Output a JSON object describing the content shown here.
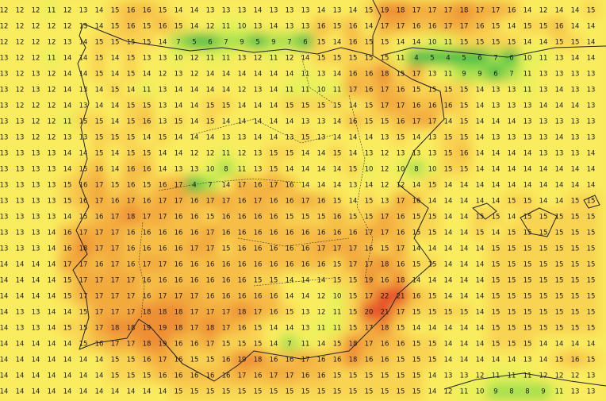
{
  "grid": {
    "rows": [
      [
        12,
        12,
        12,
        11,
        12,
        13,
        14,
        15,
        16,
        16,
        15,
        14,
        14,
        13,
        13,
        13,
        14,
        13,
        13,
        13,
        14,
        13,
        14,
        15,
        19,
        18,
        17,
        17,
        17,
        18,
        17,
        17,
        16,
        14,
        12,
        14,
        14,
        15
      ],
      [
        12,
        12,
        12,
        12,
        12,
        13,
        14,
        15,
        16,
        15,
        16,
        15,
        14,
        12,
        11,
        10,
        13,
        14,
        13,
        13,
        16,
        15,
        16,
        14,
        17,
        17,
        16,
        16,
        17,
        17,
        16,
        15,
        14,
        15,
        15,
        16,
        14,
        14
      ],
      [
        12,
        12,
        12,
        12,
        13,
        14,
        15,
        15,
        15,
        15,
        14,
        7,
        5,
        6,
        7,
        9,
        5,
        9,
        7,
        6,
        15,
        14,
        16,
        15,
        15,
        14,
        14,
        10,
        11,
        15,
        15,
        15,
        15,
        14,
        14,
        15,
        15,
        14
      ],
      [
        13,
        12,
        12,
        11,
        14,
        14,
        15,
        14,
        15,
        13,
        13,
        10,
        12,
        11,
        11,
        13,
        12,
        11,
        12,
        14,
        15,
        15,
        15,
        15,
        15,
        11,
        4,
        5,
        4,
        5,
        6,
        7,
        6,
        10,
        11,
        13,
        14,
        14
      ],
      [
        13,
        12,
        13,
        12,
        14,
        14,
        15,
        14,
        15,
        14,
        12,
        13,
        12,
        14,
        14,
        14,
        14,
        14,
        14,
        11,
        13,
        14,
        16,
        16,
        18,
        15,
        17,
        13,
        11,
        9,
        9,
        6,
        7,
        11,
        13,
        13,
        13,
        13
      ],
      [
        13,
        12,
        13,
        12,
        14,
        13,
        14,
        15,
        14,
        11,
        13,
        14,
        14,
        14,
        14,
        12,
        13,
        14,
        11,
        11,
        10,
        11,
        17,
        16,
        17,
        16,
        15,
        15,
        15,
        15,
        14,
        13,
        13,
        11,
        13,
        14,
        13,
        13
      ],
      [
        13,
        12,
        12,
        12,
        14,
        13,
        14,
        14,
        15,
        15,
        13,
        14,
        14,
        15,
        15,
        14,
        14,
        14,
        15,
        15,
        15,
        15,
        14,
        15,
        17,
        17,
        16,
        16,
        16,
        15,
        14,
        13,
        13,
        13,
        14,
        14,
        14,
        13
      ],
      [
        13,
        13,
        12,
        12,
        11,
        15,
        15,
        14,
        15,
        16,
        13,
        15,
        14,
        15,
        14,
        14,
        14,
        14,
        14,
        13,
        13,
        14,
        16,
        15,
        15,
        16,
        17,
        17,
        14,
        15,
        14,
        14,
        14,
        13,
        13,
        13,
        13,
        13
      ],
      [
        13,
        13,
        12,
        12,
        13,
        13,
        15,
        15,
        15,
        14,
        15,
        14,
        14,
        14,
        13,
        13,
        14,
        14,
        13,
        15,
        13,
        14,
        14,
        14,
        13,
        15,
        14,
        13,
        15,
        15,
        14,
        13,
        13,
        13,
        13,
        14,
        13,
        13
      ],
      [
        13,
        13,
        13,
        13,
        14,
        14,
        15,
        14,
        15,
        15,
        14,
        14,
        12,
        12,
        11,
        12,
        13,
        15,
        15,
        14,
        14,
        15,
        14,
        13,
        12,
        13,
        13,
        13,
        15,
        16,
        14,
        14,
        14,
        14,
        13,
        13,
        13,
        14
      ],
      [
        13,
        13,
        13,
        13,
        14,
        15,
        16,
        14,
        16,
        16,
        14,
        13,
        13,
        10,
        8,
        11,
        13,
        15,
        14,
        14,
        14,
        14,
        15,
        10,
        12,
        10,
        8,
        10,
        15,
        15,
        14,
        14,
        14,
        14,
        14,
        14,
        14,
        14
      ],
      [
        13,
        13,
        13,
        13,
        15,
        16,
        17,
        15,
        16,
        15,
        16,
        17,
        4,
        7,
        14,
        17,
        16,
        17,
        16,
        14,
        14,
        14,
        13,
        14,
        12,
        12,
        14,
        15,
        14,
        14,
        14,
        14,
        14,
        14,
        14,
        14,
        14,
        14
      ],
      [
        13,
        13,
        13,
        13,
        15,
        16,
        17,
        16,
        17,
        16,
        17,
        17,
        16,
        17,
        17,
        16,
        17,
        16,
        16,
        17,
        16,
        15,
        14,
        15,
        13,
        17,
        16,
        14,
        14,
        14,
        14,
        14,
        15,
        15,
        14,
        14,
        15,
        15
      ],
      [
        13,
        13,
        13,
        13,
        14,
        15,
        16,
        17,
        18,
        17,
        17,
        16,
        16,
        15,
        16,
        16,
        16,
        16,
        15,
        15,
        15,
        16,
        15,
        15,
        17,
        16,
        15,
        15,
        14,
        14,
        15,
        15,
        14,
        15,
        15,
        15,
        15,
        15
      ],
      [
        13,
        13,
        13,
        14,
        16,
        17,
        17,
        17,
        16,
        16,
        16,
        16,
        16,
        17,
        16,
        16,
        16,
        16,
        16,
        16,
        16,
        16,
        16,
        17,
        17,
        16,
        15,
        15,
        14,
        14,
        15,
        14,
        15,
        15,
        15,
        15,
        15,
        15
      ],
      [
        13,
        13,
        13,
        14,
        16,
        18,
        17,
        17,
        16,
        16,
        16,
        16,
        17,
        17,
        15,
        16,
        16,
        16,
        16,
        16,
        17,
        17,
        17,
        16,
        15,
        17,
        14,
        14,
        14,
        14,
        14,
        15,
        15,
        15,
        15,
        15,
        15,
        15
      ],
      [
        14,
        14,
        14,
        14,
        17,
        17,
        16,
        17,
        16,
        17,
        17,
        16,
        16,
        16,
        16,
        16,
        16,
        16,
        16,
        16,
        16,
        15,
        17,
        17,
        18,
        16,
        15,
        15,
        14,
        14,
        14,
        15,
        15,
        15,
        15,
        15,
        15,
        15
      ],
      [
        14,
        14,
        14,
        14,
        15,
        17,
        17,
        17,
        17,
        16,
        16,
        16,
        16,
        16,
        16,
        16,
        15,
        15,
        14,
        14,
        14,
        15,
        15,
        19,
        16,
        18,
        14,
        14,
        14,
        14,
        14,
        15,
        15,
        15,
        15,
        15,
        15,
        15
      ],
      [
        14,
        14,
        14,
        14,
        15,
        17,
        17,
        17,
        17,
        16,
        17,
        17,
        17,
        16,
        16,
        16,
        16,
        16,
        14,
        14,
        12,
        10,
        15,
        17,
        22,
        21,
        16,
        15,
        14,
        14,
        14,
        15,
        15,
        15,
        15,
        15,
        15,
        15
      ],
      [
        14,
        13,
        13,
        14,
        14,
        15,
        17,
        17,
        17,
        18,
        18,
        18,
        17,
        17,
        17,
        18,
        17,
        16,
        15,
        13,
        12,
        11,
        15,
        20,
        21,
        17,
        15,
        15,
        15,
        15,
        14,
        15,
        15,
        15,
        15,
        15,
        15,
        15
      ],
      [
        14,
        13,
        13,
        14,
        15,
        15,
        17,
        18,
        18,
        19,
        19,
        18,
        17,
        18,
        17,
        16,
        15,
        14,
        14,
        13,
        11,
        11,
        15,
        17,
        18,
        15,
        14,
        14,
        14,
        14,
        14,
        15,
        15,
        15,
        15,
        15,
        15,
        15
      ],
      [
        14,
        14,
        14,
        14,
        14,
        15,
        16,
        17,
        17,
        18,
        19,
        16,
        16,
        17,
        15,
        15,
        15,
        14,
        7,
        11,
        14,
        15,
        18,
        17,
        16,
        16,
        15,
        15,
        14,
        14,
        14,
        15,
        15,
        15,
        14,
        14,
        14,
        14
      ],
      [
        14,
        14,
        14,
        14,
        14,
        14,
        14,
        15,
        15,
        16,
        17,
        16,
        15,
        15,
        16,
        19,
        18,
        16,
        16,
        17,
        16,
        16,
        18,
        16,
        16,
        15,
        15,
        15,
        14,
        14,
        14,
        14,
        14,
        13,
        14,
        15,
        16,
        15
      ],
      [
        14,
        14,
        14,
        14,
        14,
        14,
        14,
        15,
        15,
        15,
        16,
        16,
        16,
        16,
        16,
        17,
        16,
        17,
        17,
        16,
        16,
        15,
        15,
        15,
        15,
        15,
        15,
        14,
        13,
        13,
        12,
        11,
        11,
        11,
        12,
        12,
        12,
        13
      ],
      [
        14,
        14,
        14,
        14,
        14,
        14,
        14,
        14,
        14,
        14,
        14,
        15,
        15,
        15,
        15,
        15,
        15,
        15,
        15,
        15,
        15,
        15,
        15,
        15,
        15,
        15,
        15,
        14,
        12,
        11,
        10,
        9,
        8,
        8,
        9,
        11,
        13,
        13
      ]
    ]
  }
}
